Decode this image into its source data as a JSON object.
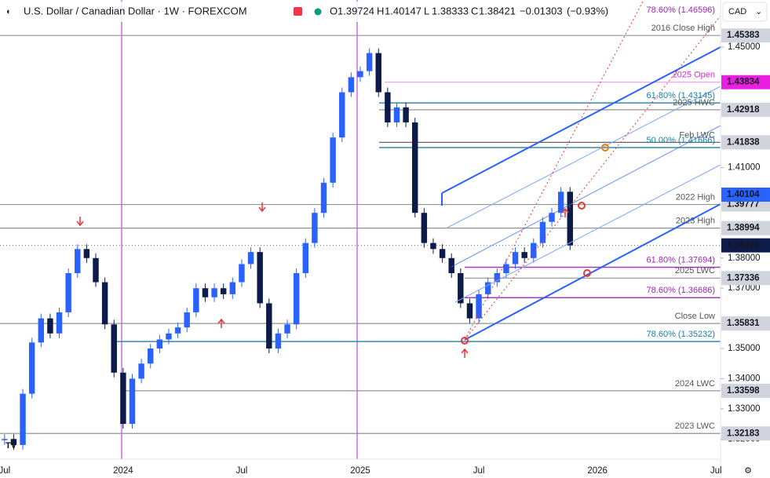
{
  "chart_data": {
    "type": "candlestick",
    "title": "U.S. Dollar / Canadian Dollar · 1W · FOREXCOM",
    "currency": "CAD",
    "ohlc": [
      {
        "label": "O",
        "value": 1.39724
      },
      {
        "label": "H",
        "value": 1.40147
      },
      {
        "label": "L",
        "value": 1.38333
      },
      {
        "label": "C",
        "value": 1.38421
      }
    ],
    "change": -0.01303,
    "change_label": "−0.01303",
    "change_pct": -0.93,
    "change_pct_label": "(−0.93%)",
    "categories": [
      "Jul",
      null,
      null,
      null,
      null,
      null,
      null,
      null,
      null,
      null,
      null,
      null,
      null,
      "2024",
      null,
      null,
      null,
      null,
      null,
      null,
      null,
      null,
      null,
      null,
      null,
      null,
      "Jul",
      null,
      null,
      null,
      null,
      null,
      null,
      null,
      null,
      null,
      null,
      null,
      null,
      "2025",
      null,
      null,
      null,
      null,
      null,
      null,
      null,
      null,
      null,
      null,
      null,
      null,
      "Jul",
      null,
      null,
      null,
      null,
      null,
      null,
      null,
      null,
      null,
      null,
      null,
      null,
      "2026",
      null,
      null,
      null,
      null,
      null,
      null,
      null,
      null,
      null,
      null,
      null,
      null,
      "Jul"
    ],
    "series": [
      {
        "name": "USD/CAD",
        "up_color": "#2962ff",
        "down_color": "#0d1b4a",
        "values": [
          1.32,
          1.318,
          1.335,
          1.352,
          1.36,
          1.355,
          1.362,
          1.375,
          1.383,
          1.38,
          1.372,
          1.358,
          1.342,
          1.325,
          1.34,
          1.345,
          1.35,
          1.353,
          1.355,
          1.357,
          1.362,
          1.37,
          1.367,
          1.37,
          1.368,
          1.372,
          1.378,
          1.382,
          1.365,
          1.35,
          1.355,
          1.358,
          1.375,
          1.385,
          1.395,
          1.405,
          1.42,
          1.435,
          1.44,
          1.442,
          1.448,
          1.435,
          1.425,
          1.43,
          1.425,
          1.395,
          1.385,
          1.383,
          1.38,
          1.375,
          1.365,
          1.36,
          1.368,
          1.372,
          1.375,
          1.378,
          1.382,
          1.38,
          1.385,
          1.392,
          1.395,
          1.402,
          1.38421,
          null,
          null,
          null,
          null,
          null,
          null,
          null,
          null,
          null,
          null,
          null,
          null,
          null,
          null,
          null,
          null
        ]
      }
    ],
    "ylim": [
      1.3133,
      1.4656
    ],
    "yticks": [
      {
        "value": 1.45,
        "label": "1.45000"
      },
      {
        "value": 1.41,
        "label": "1.41000"
      },
      {
        "value": 1.38,
        "label": "1.38000"
      },
      {
        "value": 1.37,
        "label": "1.37000"
      },
      {
        "value": 1.35,
        "label": "1.35000"
      },
      {
        "value": 1.34,
        "label": "1.34000"
      },
      {
        "value": 1.33,
        "label": "1.33000"
      },
      {
        "value": 1.32,
        "label": "1.32000"
      }
    ],
    "levels": [
      {
        "label": "78.60% (1.46596)",
        "value": 1.46596,
        "color": "#9c27b0"
      },
      {
        "label": "2016 Close High",
        "value": 1.45383,
        "color": "#888888",
        "tag": "#d1d4dc"
      },
      {
        "label": "2025 Open",
        "value": 1.43834,
        "color": "#e91ee0",
        "tag": "#e91ee0"
      },
      {
        "label": "61.80% (1.43145)",
        "value": 1.43145,
        "color": "#1b7fa6"
      },
      {
        "label": "2025 HWC",
        "value": 1.42918,
        "color": "#888888",
        "tag": "#d1d4dc"
      },
      {
        "label": "Feb LWC",
        "value": 1.41838,
        "color": "#555555",
        "tag": "#d1d4dc"
      },
      {
        "label": "50.00% (1.41666)",
        "value": 1.41666,
        "color": "#1b7fa6"
      },
      {
        "label": "2022 High",
        "value": 1.39777,
        "color": "#888888",
        "tag": "#d1d4dc"
      },
      {
        "label": "2023 High",
        "value": 1.38994,
        "color": "#888888",
        "tag": "#d1d4dc"
      },
      {
        "label": "61.80% (1.37694)",
        "value": 1.37694,
        "color": "#9c27b0"
      },
      {
        "label": "2025 LWC",
        "value": 1.37336,
        "color": "#888888",
        "tag": "#d1d4dc"
      },
      {
        "label": "78.60% (1.36686)",
        "value": 1.36686,
        "color": "#9c27b0"
      },
      {
        "label": "Close Low",
        "value": 1.35831,
        "color": "#888888",
        "tag": "#d1d4dc"
      },
      {
        "label": "78.60% (1.35232)",
        "value": 1.35232,
        "color": "#1b7fa6"
      },
      {
        "label": "2024 LWC",
        "value": 1.33598,
        "color": "#888888",
        "tag": "#d1d4dc"
      },
      {
        "label": "2023 LWC",
        "value": 1.32183,
        "color": "#888888",
        "tag": "#d1d4dc"
      }
    ],
    "ma_tag": {
      "value": 1.40104,
      "color": "#2962ff"
    },
    "last_tag_color": "#0d1b4a"
  }
}
